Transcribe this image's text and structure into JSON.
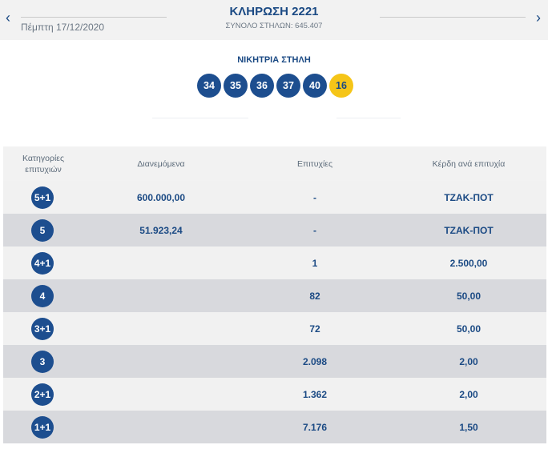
{
  "header": {
    "prev_icon": "chevron-left-icon",
    "next_icon": "chevron-right-icon",
    "prev_glyph": "‹",
    "next_glyph": "›",
    "title": "ΚΛΗΡΩΣΗ 2221",
    "date": "Πέμπτη 17/12/2020",
    "total_columns": "ΣΥΝΟΛΟ ΣΤΗΛΩΝ: 645.407"
  },
  "winning": {
    "title": "ΝΙΚΗΤΡΙΑ ΣΤΗΛΗ",
    "numbers": [
      "34",
      "35",
      "36",
      "37",
      "40"
    ],
    "bonus": "16"
  },
  "table": {
    "headers": {
      "category_line1": "Κατηγορίες",
      "category_line2": "επιτυχιών",
      "distributed": "Διανεμόμενα",
      "successes": "Επιτυχίες",
      "prize": "Κέρδη ανά επιτυχία"
    },
    "rows": [
      {
        "category": "5+1",
        "distributed": "600.000,00",
        "successes": "-",
        "prize": "ΤΖΑΚ-ΠΟΤ"
      },
      {
        "category": "5",
        "distributed": "51.923,24",
        "successes": "-",
        "prize": "ΤΖΑΚ-ΠΟΤ"
      },
      {
        "category": "4+1",
        "distributed": "",
        "successes": "1",
        "prize": "2.500,00"
      },
      {
        "category": "4",
        "distributed": "",
        "successes": "82",
        "prize": "50,00"
      },
      {
        "category": "3+1",
        "distributed": "",
        "successes": "72",
        "prize": "50,00"
      },
      {
        "category": "3",
        "distributed": "",
        "successes": "2.098",
        "prize": "2,00"
      },
      {
        "category": "2+1",
        "distributed": "",
        "successes": "1.362",
        "prize": "2,00"
      },
      {
        "category": "1+1",
        "distributed": "",
        "successes": "7.176",
        "prize": "1,50"
      }
    ]
  },
  "colors": {
    "brand_blue": "#1d4e8f",
    "bonus_yellow": "#f5c518",
    "row_light": "#f1f1f1",
    "row_dark": "#d8d9dd"
  }
}
